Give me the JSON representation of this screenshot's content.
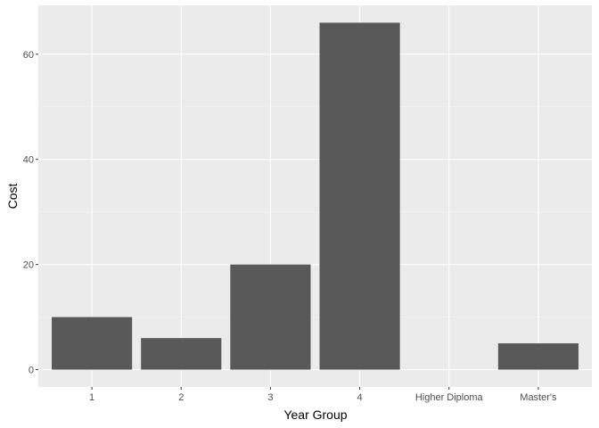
{
  "chart_data": {
    "type": "bar",
    "categories": [
      "1",
      "2",
      "3",
      "4",
      "Higher Diploma",
      "Master's"
    ],
    "values": [
      10,
      6,
      20,
      66,
      0,
      5
    ],
    "xlabel": "Year Group",
    "ylabel": "Cost",
    "yticks": [
      0,
      20,
      40,
      60
    ],
    "ylim": [
      -3.3,
      69.3
    ],
    "grid": true,
    "legend": "none",
    "colors": {
      "bar": "#595959",
      "panel": "#ebebeb",
      "grid_major": "#ffffff",
      "tick_text": "#4d4d4d",
      "tick_mark": "#333333"
    }
  }
}
